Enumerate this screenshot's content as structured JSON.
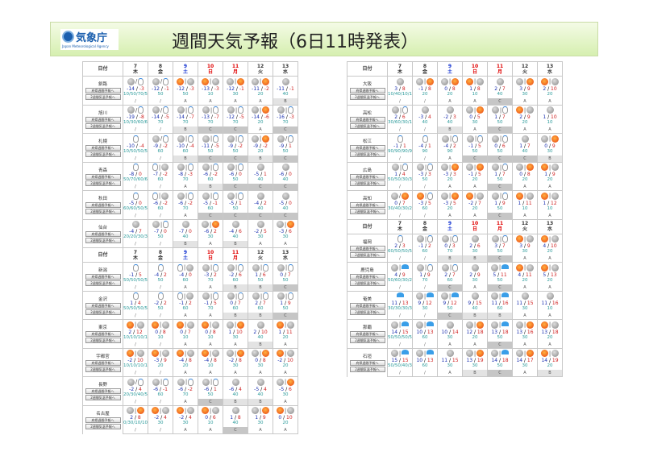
{
  "header": {
    "logo_text": "気象庁",
    "logo_sub": "Japan Meteorological Agency",
    "title": "週間天気予報（6日11時発表）"
  },
  "labels": {
    "date": "日付",
    "pref_button": "府県週間予報へ",
    "twoweek_button": "2週間気温予報へ"
  },
  "days": [
    {
      "d": "7",
      "w": "木",
      "type": "wd"
    },
    {
      "d": "8",
      "w": "金",
      "type": "wd"
    },
    {
      "d": "9",
      "w": "土",
      "type": "sat"
    },
    {
      "d": "10",
      "w": "日",
      "type": "sun"
    },
    {
      "d": "11",
      "w": "月",
      "type": "sun"
    },
    {
      "d": "12",
      "w": "火",
      "type": "wd"
    },
    {
      "d": "13",
      "w": "水",
      "type": "wd"
    }
  ],
  "colors": {
    "saturday": "#1030d0",
    "holiday": "#e00000",
    "min_temp": "#1a2fb0",
    "max_temp": "#d02020",
    "pop": "#2a9a9a"
  },
  "weather_legend": {
    "c": "cloud-icon",
    "s": "sun-icon",
    "n": "snow-icon",
    "r": "rain-icon",
    "/": "occasionally",
    "|": "later"
  },
  "left": [
    {
      "header": true
    },
    {
      "city": "釧路",
      "wx": [
        "c/n",
        "c/n",
        "s|c",
        "s|c",
        "c|s",
        "c|s",
        "c"
      ],
      "t": [
        [
          "-14",
          "-3"
        ],
        [
          "-12",
          "-1"
        ],
        [
          "-12",
          "-3"
        ],
        [
          "-13",
          "-3"
        ],
        [
          "-12",
          "-1"
        ],
        [
          "-11",
          "-2"
        ],
        [
          "-11",
          "-1"
        ]
      ],
      "pop": [
        "10/50/70/50",
        "50",
        "50",
        "10",
        "30",
        "20",
        "40"
      ],
      "rel": [
        "/",
        "/",
        "A",
        "A",
        "A",
        "A",
        "B"
      ]
    },
    {
      "city": "旭川",
      "wx": [
        "c/n",
        "c/n",
        "c|n",
        "c|n",
        "c|n",
        "c|s",
        "c|n"
      ],
      "t": [
        [
          "-19",
          "-8"
        ],
        [
          "-14",
          "-5"
        ],
        [
          "-14",
          "-7"
        ],
        [
          "-13",
          "-7"
        ],
        [
          "-12",
          "-5"
        ],
        [
          "-14",
          "-6"
        ],
        [
          "-16",
          "-3"
        ]
      ],
      "pop": [
        "10/30/60/60",
        "70",
        "70",
        "70",
        "70",
        "20",
        "70"
      ],
      "rel": [
        "/",
        "/",
        "B",
        "C",
        "C",
        "A",
        "C"
      ]
    },
    {
      "city": "札幌",
      "wx": [
        "n",
        "c/n",
        "c|n",
        "c|n",
        "c|n",
        "c|s",
        "c/n"
      ],
      "t": [
        [
          "-10",
          "-4"
        ],
        [
          "-9",
          "-2"
        ],
        [
          "-10",
          "-4"
        ],
        [
          "-11",
          "-5"
        ],
        [
          "-9",
          "-2"
        ],
        [
          "-9",
          "-2"
        ],
        [
          "-9",
          "1"
        ]
      ],
      "pop": [
        "10/50/50/50",
        "60",
        "60",
        "50",
        "50",
        "20",
        "50"
      ],
      "rel": [
        "/",
        "/",
        "B",
        "C",
        "C",
        "B",
        "C"
      ]
    },
    {
      "city": "青森",
      "wx": [
        "n",
        "n|c",
        "c|n",
        "c|n",
        "c|n",
        "c",
        "c"
      ],
      "t": [
        [
          "-8",
          "0"
        ],
        [
          "-7",
          "-2"
        ],
        [
          "-8",
          "-3"
        ],
        [
          "-6",
          "-2"
        ],
        [
          "-6",
          "0"
        ],
        [
          "-5",
          "1"
        ],
        [
          "-6",
          "0"
        ]
      ],
      "pop": [
        "50/70/60/60",
        "60",
        "70",
        "60",
        "50",
        "40",
        "40"
      ],
      "rel": [
        "/",
        "/",
        "A",
        "B",
        "C",
        "C",
        "C"
      ]
    },
    {
      "city": "秋田",
      "wx": [
        "n",
        "n|c",
        "c|n",
        "c|n",
        "c|n",
        "c",
        "c"
      ],
      "t": [
        [
          "-5",
          "0"
        ],
        [
          "-6",
          "-2"
        ],
        [
          "-6",
          "-2"
        ],
        [
          "-5",
          "-1"
        ],
        [
          "-5",
          "1"
        ],
        [
          "-4",
          "2"
        ],
        [
          "-5",
          "0"
        ]
      ],
      "pop": [
        "60/60/50/50",
        "60",
        "70",
        "60",
        "50",
        "40",
        "40"
      ],
      "rel": [
        "/",
        "/",
        "A",
        "C",
        "C",
        "C",
        "C"
      ]
    },
    {
      "city": "仙台",
      "wx": [
        "c",
        "c|n",
        "c",
        "c|s",
        "c",
        "c",
        "c|s"
      ],
      "t": [
        [
          "-4",
          "7"
        ],
        [
          "-7",
          "0"
        ],
        [
          "-7",
          "0"
        ],
        [
          "-6",
          "2"
        ],
        [
          "-4",
          "6"
        ],
        [
          "-2",
          "5"
        ],
        [
          "-3",
          "6"
        ]
      ],
      "pop": [
        "20/20/30/30",
        "50",
        "40",
        "30",
        "40",
        "30",
        "30"
      ],
      "rel": [
        "/",
        "/",
        "B",
        "A",
        "B",
        "A",
        "A"
      ]
    },
    {
      "header": true
    },
    {
      "city": "新潟",
      "wx": [
        "n",
        "n",
        "n|c",
        "c|n",
        "c|n",
        "c|n",
        "c|n"
      ],
      "t": [
        [
          "-1",
          "5"
        ],
        [
          "-4",
          "2"
        ],
        [
          "-4",
          "0"
        ],
        [
          "-3",
          "2"
        ],
        [
          "-2",
          "6"
        ],
        [
          "1",
          "6"
        ],
        [
          "0",
          "7"
        ]
      ],
      "pop": [
        "50/50/50/50",
        "50",
        "60",
        "70",
        "60",
        "50",
        "50"
      ],
      "rel": [
        "/",
        "/",
        "A",
        "A",
        "B",
        "B",
        "C"
      ]
    },
    {
      "city": "金沢",
      "wx": [
        "n",
        "n",
        "n|c",
        "c|n",
        "c|n",
        "c|n",
        "c|n"
      ],
      "t": [
        [
          "1",
          "4"
        ],
        [
          "-2",
          "2"
        ],
        [
          "-1",
          "2"
        ],
        [
          "-1",
          "5"
        ],
        [
          "0",
          "7"
        ],
        [
          "2",
          "7"
        ],
        [
          "1",
          "9"
        ]
      ],
      "pop": [
        "50/50/50/50",
        "50",
        "60",
        "70",
        "60",
        "60",
        "50"
      ],
      "rel": [
        "/",
        "/",
        "A",
        "A",
        "B",
        "B",
        "C"
      ]
    },
    {
      "city": "東京",
      "wx": [
        "s|c",
        "s|c",
        "s|c",
        "s|c",
        "c|s",
        "c",
        "s|c"
      ],
      "t": [
        [
          "2",
          "12"
        ],
        [
          "0",
          "8"
        ],
        [
          "0",
          "7"
        ],
        [
          "0",
          "8"
        ],
        [
          "1",
          "10"
        ],
        [
          "2",
          "10"
        ],
        [
          "1",
          "11"
        ]
      ],
      "pop": [
        "10/10/10/10",
        "10",
        "10",
        "10",
        "30",
        "40",
        "20"
      ],
      "rel": [
        "/",
        "/",
        "A",
        "A",
        "A",
        "B",
        "A"
      ]
    },
    {
      "city": "宇都宮",
      "wx": [
        "s|c",
        "s|c",
        "s|c",
        "s|c",
        "c|s",
        "c|s",
        "s|c"
      ],
      "t": [
        [
          "-2",
          "10"
        ],
        [
          "-3",
          "9"
        ],
        [
          "-4",
          "8"
        ],
        [
          "-4",
          "8"
        ],
        [
          "-2",
          "8"
        ],
        [
          "0",
          "8"
        ],
        [
          "-2",
          "10"
        ]
      ],
      "pop": [
        "10/10/10/10",
        "20",
        "20",
        "10",
        "30",
        "30",
        "20"
      ],
      "rel": [
        "/",
        "/",
        "A",
        "A",
        "A",
        "A",
        "A"
      ]
    },
    {
      "city": "長野",
      "wx": [
        "c/n",
        "c|n",
        "c|n",
        "c|n",
        "c",
        "c",
        "c|s"
      ],
      "t": [
        [
          "-2",
          "4"
        ],
        [
          "-6",
          "-1"
        ],
        [
          "-6",
          "-2"
        ],
        [
          "-6",
          "1"
        ],
        [
          "-6",
          "4"
        ],
        [
          "-5",
          "4"
        ],
        [
          "-5",
          "6"
        ]
      ],
      "pop": [
        "20/30/40/50",
        "60",
        "70",
        "50",
        "40",
        "40",
        "30"
      ],
      "rel": [
        "/",
        "/",
        "A",
        "C",
        "B",
        "B",
        "A"
      ]
    },
    {
      "city": "名古屋",
      "wx": [
        "c|s",
        "s|c",
        "s|c",
        "s|c",
        "c",
        "c|s",
        "s|c"
      ],
      "t": [
        [
          "2",
          "8"
        ],
        [
          "-2",
          "4"
        ],
        [
          "-2",
          "4"
        ],
        [
          "0",
          "6"
        ],
        [
          "1",
          "8"
        ],
        [
          "1",
          "9"
        ],
        [
          "0",
          "10"
        ]
      ],
      "pop": [
        "0/30/10/10",
        "30",
        "30",
        "10",
        "40",
        "30",
        "20"
      ],
      "rel": [
        "/",
        "/",
        "A",
        "A",
        "C",
        "A",
        "A"
      ]
    }
  ],
  "right": [
    {
      "header": true
    },
    {
      "city": "大阪",
      "wx": [
        "c",
        "c|s",
        "c|s",
        "s|c",
        "c",
        "c|s",
        "s|c"
      ],
      "t": [
        [
          "3",
          "8"
        ],
        [
          "-1",
          "8"
        ],
        [
          "0",
          "8"
        ],
        [
          "1",
          "8"
        ],
        [
          "2",
          "7"
        ],
        [
          "3",
          "9"
        ],
        [
          "2",
          "10"
        ]
      ],
      "pop": [
        "10/40/10/10",
        "20",
        "20",
        "10",
        "40",
        "30",
        "20"
      ],
      "rel": [
        "/",
        "/",
        "A",
        "A",
        "C",
        "A",
        "A"
      ]
    },
    {
      "city": "高松",
      "wx": [
        "c|n",
        "c",
        "c",
        "c|s",
        "c|n",
        "s|c",
        "c"
      ],
      "t": [
        [
          "2",
          "6"
        ],
        [
          "-3",
          "4"
        ],
        [
          "-2",
          "3"
        ],
        [
          "0",
          "5"
        ],
        [
          "1",
          "7"
        ],
        [
          "2",
          "9"
        ],
        [
          "1",
          "10"
        ]
      ],
      "pop": [
        "30/60/30/10",
        "40",
        "40",
        "30",
        "50",
        "20",
        "10"
      ],
      "rel": [
        "/",
        "/",
        "B",
        "A",
        "C",
        "A",
        "A"
      ]
    },
    {
      "city": "松江",
      "wx": [
        "n",
        "n",
        "c|n",
        "c|n",
        "c|n",
        "c",
        "c|s"
      ],
      "t": [
        [
          "-1",
          "1"
        ],
        [
          "-4",
          "1"
        ],
        [
          "-4",
          "2"
        ],
        [
          "-1",
          "5"
        ],
        [
          "0",
          "6"
        ],
        [
          "1",
          "7"
        ],
        [
          "0",
          "9"
        ]
      ],
      "pop": [
        "90/90/90/90",
        "90",
        "90",
        "50",
        "50",
        "40",
        "30"
      ],
      "rel": [
        "/",
        "/",
        "A",
        "C",
        "C",
        "C",
        "B"
      ]
    },
    {
      "city": "広島",
      "wx": [
        "c|n",
        "c|n",
        "c|s",
        "c|s",
        "c|n",
        "c|s",
        "s|c"
      ],
      "t": [
        [
          "1",
          "4"
        ],
        [
          "-3",
          "3"
        ],
        [
          "-3",
          "3"
        ],
        [
          "-1",
          "5"
        ],
        [
          "1",
          "7"
        ],
        [
          "0",
          "8"
        ],
        [
          "1",
          "9"
        ]
      ],
      "pop": [
        "50/50/30/30",
        "50",
        "20",
        "20",
        "50",
        "20",
        "20"
      ],
      "rel": [
        "/",
        "/",
        "A",
        "A",
        "C",
        "A",
        "A"
      ]
    },
    {
      "city": "高知",
      "wx": [
        "c/s",
        "s|n",
        "c|s",
        "s|c",
        "c|n",
        "s|c",
        "s|c"
      ],
      "t": [
        [
          "0",
          "7"
        ],
        [
          "-3",
          "5"
        ],
        [
          "-3",
          "5"
        ],
        [
          "-2",
          "7"
        ],
        [
          "1",
          "9"
        ],
        [
          "1",
          "11"
        ],
        [
          "1",
          "12"
        ]
      ],
      "pop": [
        "30/40/30/20",
        "60",
        "20",
        "20",
        "50",
        "10",
        "10"
      ],
      "rel": [
        "/",
        "/",
        "A",
        "A",
        "C",
        "A",
        "A"
      ]
    },
    {
      "header": true
    },
    {
      "city": "福岡",
      "wx": [
        "n",
        "c|n",
        "c|n",
        "c",
        "c|n",
        "s|c",
        "s|c"
      ],
      "t": [
        [
          "2",
          "3"
        ],
        [
          "-1",
          "2"
        ],
        [
          "0",
          "3"
        ],
        [
          "2",
          "6"
        ],
        [
          "3",
          "7"
        ],
        [
          "3",
          "9"
        ],
        [
          "4",
          "10"
        ]
      ],
      "pop": [
        "60/50/50/50",
        "60",
        "70",
        "30",
        "50",
        "30",
        "20"
      ],
      "rel": [
        "/",
        "/",
        "B",
        "B",
        "C",
        "A",
        "A"
      ]
    },
    {
      "city": "鹿児島",
      "wx": [
        "c|r",
        "c|n",
        "c|n",
        "c",
        "c|r",
        "s|c",
        "s|c"
      ],
      "t": [
        [
          "4",
          "9"
        ],
        [
          "1",
          "9"
        ],
        [
          "2",
          "7"
        ],
        [
          "2",
          "9"
        ],
        [
          "5",
          "11"
        ],
        [
          "4",
          "11"
        ],
        [
          "5",
          "13"
        ]
      ],
      "pop": [
        "50/60/30/20",
        "70",
        "60",
        "30",
        "50",
        "20",
        "20"
      ],
      "rel": [
        "/",
        "/",
        "C",
        "A",
        "C",
        "A",
        "A"
      ]
    },
    {
      "city": "奄美",
      "wx": [
        "r",
        "c|r",
        "c|r",
        "c",
        "c|r",
        "c",
        "c"
      ],
      "t": [
        [
          "11",
          "13"
        ],
        [
          "9",
          "12"
        ],
        [
          "9",
          "12"
        ],
        [
          "9",
          "15"
        ],
        [
          "11",
          "16"
        ],
        [
          "11",
          "15"
        ],
        [
          "11",
          "16"
        ]
      ],
      "pop": [
        "30/30/30/30",
        "30",
        "50",
        "40",
        "60",
        "30",
        "10"
      ],
      "rel": [
        "/",
        "/",
        "C",
        "B",
        "B",
        "A",
        "A"
      ]
    },
    {
      "city": "那覇",
      "wx": [
        "c|r",
        "c|r",
        "c",
        "c|s",
        "c|r",
        "c|s",
        "s|c"
      ],
      "t": [
        [
          "14",
          "15"
        ],
        [
          "10",
          "13"
        ],
        [
          "10",
          "14"
        ],
        [
          "12",
          "18"
        ],
        [
          "13",
          "18"
        ],
        [
          "13",
          "16"
        ],
        [
          "13",
          "18"
        ]
      ],
      "pop": [
        "50/50/50/50",
        "60",
        "30",
        "20",
        "50",
        "30",
        "20"
      ],
      "rel": [
        "/",
        "/",
        "A",
        "A",
        "C",
        "A",
        "A"
      ]
    },
    {
      "city": "石垣",
      "wx": [
        "c|r",
        "c|r",
        "c",
        "c|s",
        "c|r",
        "c|s",
        "s|c"
      ],
      "t": [
        [
          "15",
          "15"
        ],
        [
          "10",
          "13"
        ],
        [
          "11",
          "15"
        ],
        [
          "13",
          "19"
        ],
        [
          "14",
          "18"
        ],
        [
          "14",
          "17"
        ],
        [
          "14",
          "19"
        ]
      ],
      "pop": [
        "50/50/40/30",
        "60",
        "30",
        "30",
        "50",
        "30",
        "20"
      ],
      "rel": [
        "/",
        "/",
        "A",
        "B",
        "C",
        "A",
        "B"
      ]
    }
  ]
}
